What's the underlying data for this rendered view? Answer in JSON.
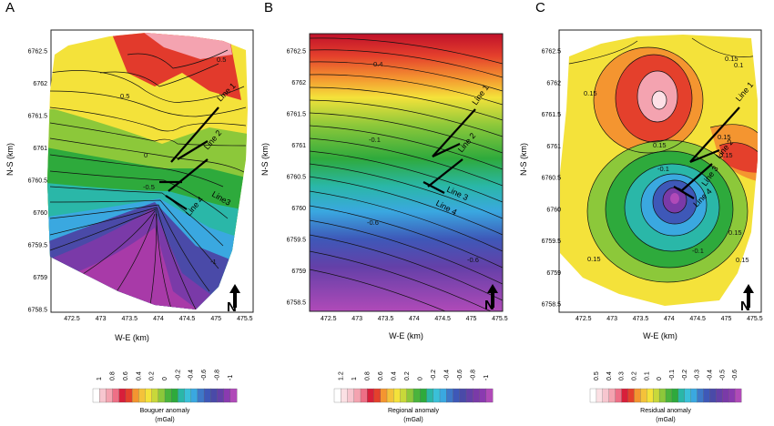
{
  "figure": {
    "panels": [
      "A",
      "B",
      "C"
    ]
  },
  "chart_data": [
    {
      "type": "contour",
      "panel": "A",
      "title": "Bouguer anomaly",
      "xlabel": "W-E (km)",
      "ylabel": "N-S (km)",
      "x_ticks": [
        "472.5",
        "473",
        "473.5",
        "474",
        "474.5",
        "475",
        "475.5"
      ],
      "y_ticks": [
        "6762.5",
        "6762",
        "6761.5",
        "6761",
        "6760.5",
        "6760",
        "6759.5",
        "6759",
        "6758.5"
      ],
      "xlim": [
        472.2,
        475.55
      ],
      "ylim": [
        6758.4,
        6762.95
      ],
      "contour_labels": [
        "0.5",
        "0.5",
        "0",
        "-0.5",
        "-1"
      ],
      "lines": [
        "Line 1",
        "Line 2",
        "Line3",
        "Line 4"
      ],
      "colorbar": {
        "ticks": [
          "1",
          "0.8",
          "0.6",
          "0.4",
          "0.2",
          "0",
          "-0.2",
          "-0.4",
          "-0.6",
          "-0.8",
          "-1"
        ],
        "label": "Bouguer anomaly",
        "unit": "(mGal)"
      }
    },
    {
      "type": "contour",
      "panel": "B",
      "title": "Regional anomaly",
      "xlabel": "W-E (km)",
      "ylabel": "N-S (km)",
      "x_ticks": [
        "472.5",
        "473",
        "473.5",
        "474",
        "474.5",
        "475",
        "475.5"
      ],
      "y_ticks": [
        "6762.5",
        "6762",
        "6761.5",
        "6761",
        "6760.5",
        "6760",
        "6759.5",
        "6759",
        "6758.5"
      ],
      "xlim": [
        472.2,
        475.55
      ],
      "ylim": [
        6758.4,
        6762.95
      ],
      "contour_labels": [
        "0.4",
        "-0.1",
        "-0.6",
        "-0.6"
      ],
      "lines": [
        "Line 1",
        "Line 2",
        "Line 3",
        "Line 4"
      ],
      "colorbar": {
        "ticks": [
          "1.2",
          "1",
          "0.8",
          "0.6",
          "0.4",
          "0.2",
          "0",
          "-0.2",
          "-0.4",
          "-0.6",
          "-0.8",
          "-1"
        ],
        "label": "Regional anomaly",
        "unit": "(mGal)"
      }
    },
    {
      "type": "contour",
      "panel": "C",
      "title": "Residual anomaly",
      "xlabel": "W-E (km)",
      "ylabel": "N-S (km)",
      "x_ticks": [
        "472.5",
        "473",
        "473.5",
        "474",
        "474.5",
        "475",
        "475.5"
      ],
      "y_ticks": [
        "6762.5",
        "6762",
        "6761.5",
        "6761",
        "6760.5",
        "6760",
        "6759.5",
        "6759",
        "6758.5"
      ],
      "xlim": [
        472.2,
        475.55
      ],
      "ylim": [
        6758.4,
        6762.95
      ],
      "contour_labels": [
        "0.15",
        "0.15",
        "0.1",
        "0.15",
        "0.15",
        "0.15",
        "-0.1",
        "0.15",
        "0.15",
        "-0.1",
        "0.15"
      ],
      "lines": [
        "Line 1",
        "Line 2",
        "Line 3",
        "Line 4"
      ],
      "colorbar": {
        "ticks": [
          "0.5",
          "0.4",
          "0.3",
          "0.2",
          "0.1",
          "0",
          "-0.1",
          "-0.2",
          "-0.3",
          "-0.4",
          "-0.5",
          "-0.6"
        ],
        "label": "Residual anomaly",
        "unit": "(mGal)"
      }
    }
  ]
}
